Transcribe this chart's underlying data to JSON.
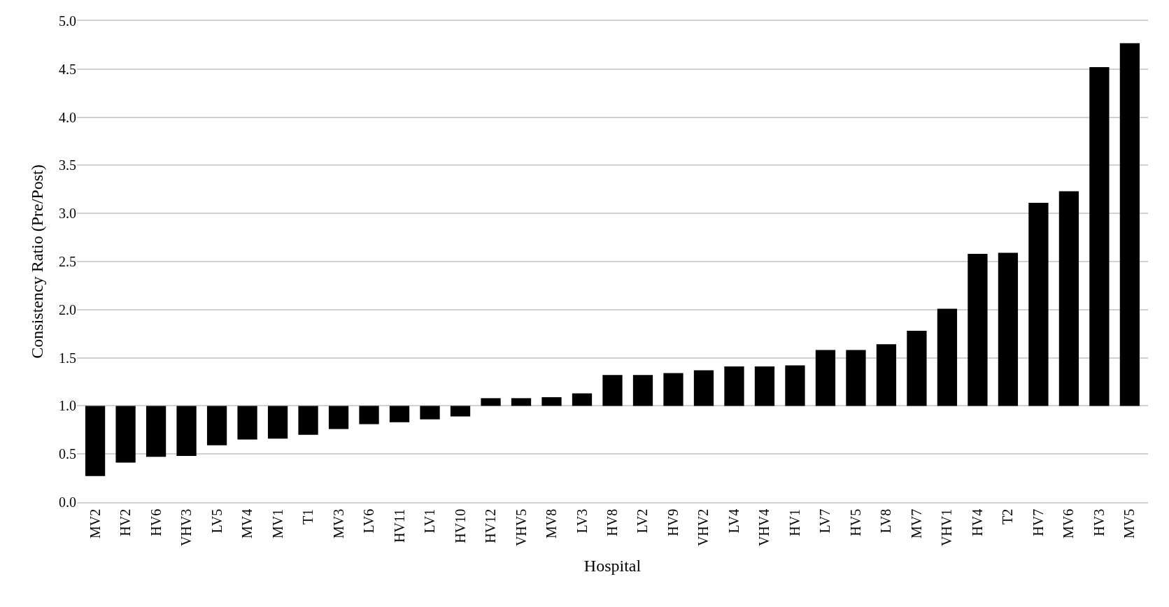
{
  "chart_data": {
    "type": "bar",
    "xlabel": "Hospital",
    "ylabel": "Consistency Ratio (Pre/Post)",
    "categories": [
      "MV2",
      "HV2",
      "HV6",
      "VHV3",
      "LV5",
      "MV4",
      "MV1",
      "T1",
      "MV3",
      "LV6",
      "HV11",
      "LV1",
      "HV10",
      "HV12",
      "VHV5",
      "MV8",
      "LV3",
      "HV8",
      "LV2",
      "HV9",
      "VHV2",
      "LV4",
      "VHV4",
      "HV1",
      "LV7",
      "HV5",
      "LV8",
      "MV7",
      "VHV1",
      "HV4",
      "T2",
      "HV7",
      "MV6",
      "HV3",
      "MV5"
    ],
    "base": [
      1,
      1,
      1,
      1,
      1,
      1,
      1,
      1,
      1,
      1,
      1,
      1,
      1,
      1,
      1,
      1,
      1,
      1,
      1,
      1,
      1,
      1,
      1,
      1,
      1,
      1,
      1,
      1,
      1,
      1,
      1,
      1,
      1,
      1,
      1
    ],
    "values": [
      -0.73,
      -0.59,
      -0.53,
      -0.52,
      -0.41,
      -0.35,
      -0.34,
      -0.3,
      -0.24,
      -0.19,
      -0.17,
      -0.14,
      -0.11,
      0.08,
      0.08,
      0.09,
      0.13,
      0.32,
      0.32,
      0.34,
      0.37,
      0.41,
      0.41,
      0.42,
      0.58,
      0.58,
      0.64,
      0.78,
      1.01,
      1.58,
      1.59,
      2.11,
      2.23,
      3.52,
      3.77
    ],
    "color": "#000000",
    "ylim": [
      0,
      5
    ],
    "yticks": [
      {
        "value": 0,
        "label": "0.0"
      },
      {
        "value": 0.5,
        "label": "0.5"
      },
      {
        "value": 1,
        "label": "1.0"
      },
      {
        "value": 1.5,
        "label": "1.5"
      },
      {
        "value": 2,
        "label": "2.0"
      },
      {
        "value": 2.5,
        "label": "2.5"
      },
      {
        "value": 3,
        "label": "3.0"
      },
      {
        "value": 3.5,
        "label": "3.5"
      },
      {
        "value": 4,
        "label": "4.0"
      },
      {
        "value": 4.5,
        "label": "4.5"
      },
      {
        "value": 5,
        "label": "5.0"
      }
    ],
    "grid": "y"
  }
}
